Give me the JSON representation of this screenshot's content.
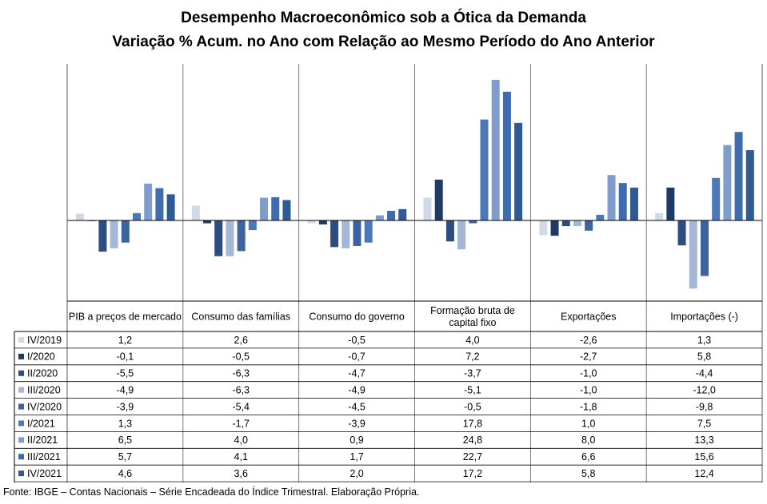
{
  "title": "Desempenho Macroeconômico sob a Ótica da Demanda",
  "subtitle": "Variação % Acum. no Ano com Relação ao Mesmo Período do Ano Anterior",
  "source": "Fonte: IBGE – Contas Nacionais – Série Encadeada do Índice Trimestral. Elaboração Própria.",
  "chart_data": {
    "type": "bar",
    "categories": [
      [
        "PIB a preços de mercado"
      ],
      [
        "Consumo das famílias"
      ],
      [
        "Consumo do governo"
      ],
      [
        "Formação bruta de",
        "capital fixo"
      ],
      [
        "Exportações"
      ],
      [
        "Importações (-)"
      ]
    ],
    "series": [
      {
        "name": "IV/2019",
        "color": "#d0d9e8",
        "values": [
          1.2,
          2.6,
          -0.5,
          4.0,
          -2.6,
          1.3
        ]
      },
      {
        "name": "I/2020",
        "color": "#1f3b64",
        "values": [
          -0.1,
          -0.5,
          -0.7,
          7.2,
          -2.7,
          5.8
        ]
      },
      {
        "name": "II/2020",
        "color": "#2c4d7d",
        "values": [
          -5.5,
          -6.3,
          -4.7,
          -3.7,
          -1.0,
          -4.4
        ]
      },
      {
        "name": "III/2020",
        "color": "#a6b7d6",
        "values": [
          -4.9,
          -6.3,
          -4.9,
          -5.1,
          -1.0,
          -12.0
        ]
      },
      {
        "name": "IV/2020",
        "color": "#3d62a0",
        "values": [
          -3.9,
          -5.4,
          -4.5,
          -0.5,
          -1.8,
          -9.8
        ]
      },
      {
        "name": "I/2021",
        "color": "#4a78b8",
        "values": [
          1.3,
          -1.7,
          -3.9,
          17.8,
          1.0,
          7.5
        ]
      },
      {
        "name": "II/2021",
        "color": "#7f9ccc",
        "values": [
          6.5,
          4.0,
          0.9,
          24.8,
          8.0,
          13.3
        ]
      },
      {
        "name": "III/2021",
        "color": "#3f6cae",
        "values": [
          5.7,
          4.1,
          1.7,
          22.7,
          6.6,
          15.6
        ]
      },
      {
        "name": "IV/2021",
        "color": "#2f5a94",
        "values": [
          4.6,
          3.6,
          2.0,
          17.2,
          5.8,
          12.4
        ]
      }
    ],
    "ylim": [
      -14,
      25.5
    ],
    "legend": "table-left",
    "grid": false
  }
}
